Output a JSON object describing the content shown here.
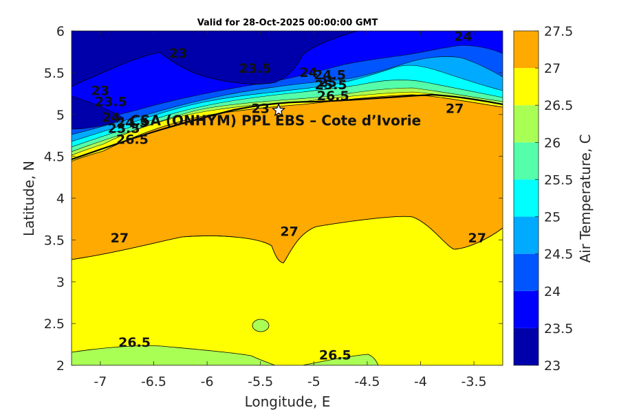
{
  "chart_data": {
    "type": "contourf",
    "title": "Valid for 28-Oct-2025 00:00:00 GMT",
    "xlabel": "Longitude, E",
    "ylabel": "Latitude, N",
    "xlim": [
      -7.27,
      -3.23
    ],
    "ylim": [
      2,
      6
    ],
    "xticks": [
      "-7",
      "-6.5",
      "-6",
      "-5.5",
      "-5",
      "-4.5",
      "-4",
      "-3.5"
    ],
    "yticks": [
      "2",
      "2.5",
      "3",
      "3.5",
      "4",
      "4.5",
      "5",
      "5.5",
      "6"
    ],
    "colorbar": {
      "label": "Air Temperature, C",
      "ticks": [
        "23",
        "23.5",
        "24",
        "24.5",
        "25",
        "25.5",
        "26",
        "26.5",
        "27",
        "27.5"
      ],
      "levels": [
        23,
        23.5,
        24,
        24.5,
        25,
        25.5,
        26,
        26.5,
        27,
        27.5
      ],
      "colors": [
        "#0000aa",
        "#0000ff",
        "#0055ff",
        "#00aaff",
        "#00ffff",
        "#55ffaa",
        "#aaff55",
        "#ffff00",
        "#ffaa00",
        "#ff5500"
      ]
    },
    "contour_labels": [
      {
        "text": "23",
        "lon": -6.27,
        "lat": 5.68
      },
      {
        "text": "23.5",
        "lon": -5.55,
        "lat": 5.5
      },
      {
        "text": "24",
        "lon": -5.05,
        "lat": 5.45
      },
      {
        "text": "24.5",
        "lon": -4.85,
        "lat": 5.42
      },
      {
        "text": "25",
        "lon": -4.87,
        "lat": 5.33
      },
      {
        "text": "25.5",
        "lon": -4.84,
        "lat": 5.3
      },
      {
        "text": "26.5",
        "lon": -4.82,
        "lat": 5.17
      },
      {
        "text": "24",
        "lon": -3.6,
        "lat": 5.88
      },
      {
        "text": "27",
        "lon": -3.68,
        "lat": 5.02
      },
      {
        "text": "23",
        "lon": -7.0,
        "lat": 5.23
      },
      {
        "text": "23.5",
        "lon": -6.9,
        "lat": 5.1
      },
      {
        "text": "24",
        "lon": -6.9,
        "lat": 4.91
      },
      {
        "text": "24.5",
        "lon": -6.7,
        "lat": 4.85
      },
      {
        "text": "25.5",
        "lon": -6.78,
        "lat": 4.78
      },
      {
        "text": "26.5",
        "lon": -6.7,
        "lat": 4.65
      },
      {
        "text": "23",
        "lon": -5.5,
        "lat": 5.02
      },
      {
        "text": "27",
        "lon": -6.82,
        "lat": 3.47
      },
      {
        "text": "27",
        "lon": -5.23,
        "lat": 3.55
      },
      {
        "text": "27",
        "lon": -3.47,
        "lat": 3.47
      },
      {
        "text": "26.5",
        "lon": -6.68,
        "lat": 2.22
      },
      {
        "text": "26.5",
        "lon": -4.8,
        "lat": 2.07
      }
    ],
    "site": {
      "name": "CSA (ONHYM) PPL EBS  – Cote d’Ivorie",
      "lon": -5.33,
      "lat": 5.05
    }
  }
}
